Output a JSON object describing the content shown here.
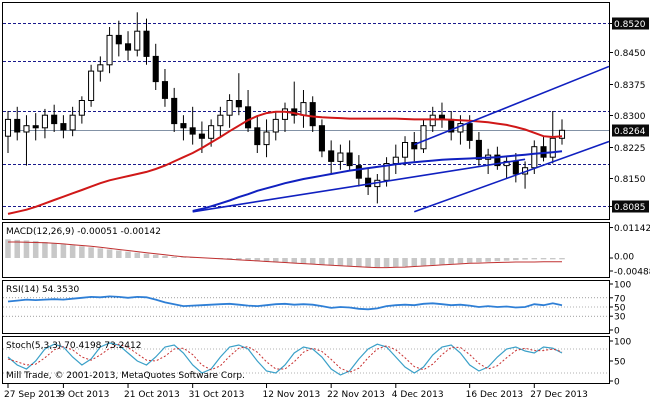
{
  "chart_data": {
    "type": "candlestick",
    "instrument": "",
    "price_panel": {
      "y_range": [
        0.806,
        0.856
      ],
      "y_ticks": [
        "0.8520",
        "0.8450",
        "0.8375",
        "0.8300",
        "0.8225",
        "0.8150",
        "0.8085"
      ],
      "highlighted_levels": [
        "0.8520",
        "0.8430",
        "0.8310",
        "0.8185",
        "0.8085"
      ],
      "current_price": "0.8264",
      "support_resistance_levels": [
        0.852,
        0.843,
        0.831,
        0.8185,
        0.8085
      ],
      "channel": {
        "upper": [
          [
            44,
            0.823
          ],
          [
            61,
            0.838
          ]
        ],
        "lower": [
          [
            44,
            0.807
          ],
          [
            61,
            0.8205
          ]
        ],
        "mid": [
          [
            20,
            0.807
          ],
          [
            56,
            0.8195
          ]
        ]
      },
      "candles": [
        {
          "o": 0.825,
          "h": 0.831,
          "l": 0.821,
          "c": 0.829
        },
        {
          "o": 0.829,
          "h": 0.832,
          "l": 0.824,
          "c": 0.826
        },
        {
          "o": 0.826,
          "h": 0.83,
          "l": 0.818,
          "c": 0.8275
        },
        {
          "o": 0.8275,
          "h": 0.8305,
          "l": 0.824,
          "c": 0.827
        },
        {
          "o": 0.827,
          "h": 0.8315,
          "l": 0.8245,
          "c": 0.83
        },
        {
          "o": 0.83,
          "h": 0.8325,
          "l": 0.826,
          "c": 0.828
        },
        {
          "o": 0.828,
          "h": 0.83,
          "l": 0.8245,
          "c": 0.8265
        },
        {
          "o": 0.8265,
          "h": 0.832,
          "l": 0.825,
          "c": 0.83
        },
        {
          "o": 0.83,
          "h": 0.8345,
          "l": 0.828,
          "c": 0.8335
        },
        {
          "o": 0.8335,
          "h": 0.842,
          "l": 0.832,
          "c": 0.8405
        },
        {
          "o": 0.8405,
          "h": 0.844,
          "l": 0.838,
          "c": 0.842
        },
        {
          "o": 0.842,
          "h": 0.851,
          "l": 0.84,
          "c": 0.849
        },
        {
          "o": 0.849,
          "h": 0.8525,
          "l": 0.844,
          "c": 0.847
        },
        {
          "o": 0.847,
          "h": 0.85,
          "l": 0.843,
          "c": 0.8455
        },
        {
          "o": 0.8455,
          "h": 0.8545,
          "l": 0.844,
          "c": 0.85
        },
        {
          "o": 0.85,
          "h": 0.853,
          "l": 0.842,
          "c": 0.844
        },
        {
          "o": 0.844,
          "h": 0.847,
          "l": 0.836,
          "c": 0.838
        },
        {
          "o": 0.838,
          "h": 0.841,
          "l": 0.832,
          "c": 0.834
        },
        {
          "o": 0.834,
          "h": 0.8365,
          "l": 0.826,
          "c": 0.828
        },
        {
          "o": 0.828,
          "h": 0.83,
          "l": 0.824,
          "c": 0.827
        },
        {
          "o": 0.827,
          "h": 0.832,
          "l": 0.823,
          "c": 0.8255
        },
        {
          "o": 0.8255,
          "h": 0.8285,
          "l": 0.821,
          "c": 0.8245
        },
        {
          "o": 0.8245,
          "h": 0.829,
          "l": 0.8225,
          "c": 0.8275
        },
        {
          "o": 0.8275,
          "h": 0.832,
          "l": 0.825,
          "c": 0.83
        },
        {
          "o": 0.83,
          "h": 0.835,
          "l": 0.827,
          "c": 0.8335
        },
        {
          "o": 0.8335,
          "h": 0.84,
          "l": 0.83,
          "c": 0.832
        },
        {
          "o": 0.832,
          "h": 0.836,
          "l": 0.826,
          "c": 0.827
        },
        {
          "o": 0.827,
          "h": 0.83,
          "l": 0.821,
          "c": 0.823
        },
        {
          "o": 0.823,
          "h": 0.829,
          "l": 0.82,
          "c": 0.826
        },
        {
          "o": 0.826,
          "h": 0.831,
          "l": 0.824,
          "c": 0.829
        },
        {
          "o": 0.829,
          "h": 0.833,
          "l": 0.826,
          "c": 0.8315
        },
        {
          "o": 0.8315,
          "h": 0.838,
          "l": 0.828,
          "c": 0.83
        },
        {
          "o": 0.83,
          "h": 0.836,
          "l": 0.827,
          "c": 0.833
        },
        {
          "o": 0.833,
          "h": 0.8345,
          "l": 0.826,
          "c": 0.8275
        },
        {
          "o": 0.8275,
          "h": 0.829,
          "l": 0.82,
          "c": 0.8215
        },
        {
          "o": 0.8215,
          "h": 0.824,
          "l": 0.816,
          "c": 0.819
        },
        {
          "o": 0.819,
          "h": 0.823,
          "l": 0.817,
          "c": 0.821
        },
        {
          "o": 0.821,
          "h": 0.824,
          "l": 0.817,
          "c": 0.818
        },
        {
          "o": 0.818,
          "h": 0.8205,
          "l": 0.813,
          "c": 0.815
        },
        {
          "o": 0.815,
          "h": 0.8175,
          "l": 0.811,
          "c": 0.813
        },
        {
          "o": 0.813,
          "h": 0.816,
          "l": 0.809,
          "c": 0.8145
        },
        {
          "o": 0.8145,
          "h": 0.82,
          "l": 0.813,
          "c": 0.8185
        },
        {
          "o": 0.8185,
          "h": 0.823,
          "l": 0.816,
          "c": 0.82
        },
        {
          "o": 0.82,
          "h": 0.825,
          "l": 0.818,
          "c": 0.8235
        },
        {
          "o": 0.8235,
          "h": 0.826,
          "l": 0.819,
          "c": 0.822
        },
        {
          "o": 0.822,
          "h": 0.829,
          "l": 0.821,
          "c": 0.8275
        },
        {
          "o": 0.8275,
          "h": 0.832,
          "l": 0.826,
          "c": 0.83
        },
        {
          "o": 0.83,
          "h": 0.833,
          "l": 0.827,
          "c": 0.829
        },
        {
          "o": 0.829,
          "h": 0.831,
          "l": 0.824,
          "c": 0.826
        },
        {
          "o": 0.826,
          "h": 0.83,
          "l": 0.823,
          "c": 0.828
        },
        {
          "o": 0.828,
          "h": 0.83,
          "l": 0.822,
          "c": 0.824
        },
        {
          "o": 0.824,
          "h": 0.826,
          "l": 0.818,
          "c": 0.8195
        },
        {
          "o": 0.8195,
          "h": 0.822,
          "l": 0.816,
          "c": 0.8205
        },
        {
          "o": 0.8205,
          "h": 0.8225,
          "l": 0.817,
          "c": 0.818
        },
        {
          "o": 0.818,
          "h": 0.82,
          "l": 0.815,
          "c": 0.819
        },
        {
          "o": 0.819,
          "h": 0.821,
          "l": 0.814,
          "c": 0.816
        },
        {
          "o": 0.816,
          "h": 0.819,
          "l": 0.8125,
          "c": 0.8175
        },
        {
          "o": 0.8175,
          "h": 0.824,
          "l": 0.816,
          "c": 0.8225
        },
        {
          "o": 0.8225,
          "h": 0.825,
          "l": 0.819,
          "c": 0.82
        },
        {
          "o": 0.82,
          "h": 0.831,
          "l": 0.8185,
          "c": 0.8245
        },
        {
          "o": 0.8245,
          "h": 0.829,
          "l": 0.823,
          "c": 0.8264
        }
      ],
      "sma_red": [
        0.8065,
        0.807,
        0.8075,
        0.8082,
        0.809,
        0.8098,
        0.8106,
        0.8114,
        0.8122,
        0.813,
        0.8138,
        0.8145,
        0.815,
        0.8155,
        0.816,
        0.8165,
        0.8172,
        0.818,
        0.819,
        0.82,
        0.821,
        0.8222,
        0.8235,
        0.8248,
        0.8262,
        0.8275,
        0.8288,
        0.8298,
        0.8305,
        0.8308,
        0.8308,
        0.8305,
        0.83,
        0.8297,
        0.8295,
        0.8294,
        0.8293,
        0.8292,
        0.8292,
        0.8292,
        0.8292,
        0.8292,
        0.8292,
        0.8291,
        0.829,
        0.829,
        0.829,
        0.829,
        0.8289,
        0.8288,
        0.8287,
        0.8285,
        0.8283,
        0.828,
        0.8277,
        0.8272,
        0.8266,
        0.8258,
        0.825,
        0.8248,
        0.825
      ],
      "sma_blue": [
        null,
        null,
        null,
        null,
        null,
        null,
        null,
        null,
        null,
        null,
        null,
        null,
        null,
        null,
        null,
        null,
        null,
        null,
        null,
        null,
        0.8072,
        0.8077,
        0.8083,
        0.809,
        0.8097,
        0.8105,
        0.8112,
        0.812,
        0.8126,
        0.8132,
        0.8138,
        0.8143,
        0.8148,
        0.8152,
        0.8156,
        0.816,
        0.8164,
        0.8168,
        0.8171,
        0.8174,
        0.8177,
        0.818,
        0.8183,
        0.8186,
        0.8188,
        0.819,
        0.8192,
        0.8194,
        0.8195,
        0.8196,
        0.8197,
        0.8198,
        0.8199,
        0.82,
        0.8202,
        0.8204,
        0.8206,
        0.8208,
        0.821,
        0.8212,
        0.8214
      ]
    },
    "macd": {
      "label": "MACD(12,26,9) -0.00051 -0.00142",
      "y_ticks": [
        "0.01142",
        "0.00",
        "-0.00488"
      ],
      "range": [
        -0.006,
        0.012
      ],
      "histogram": [
        0.007,
        0.0068,
        0.0066,
        0.0064,
        0.006,
        0.0056,
        0.0052,
        0.0048,
        0.0044,
        0.004,
        0.0036,
        0.0032,
        0.0028,
        0.0024,
        0.002,
        0.0016,
        0.0012,
        0.0008,
        0.0004,
        0.0002,
        0.0002,
        0.0,
        -0.0002,
        -0.0004,
        -0.0006,
        -0.0008,
        -0.001,
        -0.0012,
        -0.0014,
        -0.0016,
        -0.0018,
        -0.002,
        -0.0022,
        -0.0024,
        -0.0026,
        -0.0028,
        -0.003,
        -0.0032,
        -0.0034,
        -0.0036,
        -0.0035,
        -0.0034,
        -0.0033,
        -0.0032,
        -0.003,
        -0.0028,
        -0.0026,
        -0.0024,
        -0.0022,
        -0.002,
        -0.0018,
        -0.0016,
        -0.0014,
        -0.0012,
        -0.001,
        -0.0008,
        -0.0006,
        -0.0005,
        -0.0005,
        -0.0005,
        -0.0005
      ],
      "signal": [
        0.006,
        0.006,
        0.0059,
        0.0058,
        0.0057,
        0.0055,
        0.0053,
        0.005,
        0.0047,
        0.0044,
        0.004,
        0.0036,
        0.0032,
        0.0028,
        0.0024,
        0.002,
        0.0016,
        0.0012,
        0.0008,
        0.0005,
        0.0003,
        0.0001,
        -0.0001,
        -0.0003,
        -0.0005,
        -0.0007,
        -0.0009,
        -0.0011,
        -0.0013,
        -0.0015,
        -0.0017,
        -0.0019,
        -0.0021,
        -0.0023,
        -0.0025,
        -0.0027,
        -0.0029,
        -0.0031,
        -0.0033,
        -0.0035,
        -0.0036,
        -0.0036,
        -0.0035,
        -0.0034,
        -0.0032,
        -0.003,
        -0.0028,
        -0.0026,
        -0.0024,
        -0.0022,
        -0.002,
        -0.0019,
        -0.0018,
        -0.0017,
        -0.0016,
        -0.0015,
        -0.0015,
        -0.0015,
        -0.0014,
        -0.0014,
        -0.0014
      ]
    },
    "rsi": {
      "label": "RSI(14) 54.3530",
      "y_ticks": [
        "100",
        "70",
        "50",
        "30",
        "0"
      ],
      "values": [
        62,
        64,
        66,
        65,
        66,
        67,
        66,
        68,
        70,
        72,
        71,
        73,
        72,
        70,
        72,
        71,
        66,
        60,
        56,
        52,
        53,
        54,
        55,
        56,
        57,
        55,
        53,
        52,
        54,
        56,
        57,
        55,
        56,
        55,
        52,
        48,
        50,
        49,
        46,
        45,
        47,
        52,
        54,
        55,
        54,
        57,
        58,
        56,
        54,
        55,
        53,
        50,
        52,
        50,
        51,
        49,
        50,
        56,
        54,
        58,
        54
      ]
    },
    "stoch": {
      "label": "Stoch(5,3,3) 70.4198 73.2412",
      "y_ticks": [
        "100",
        "50",
        "0"
      ],
      "k": [
        60,
        40,
        30,
        50,
        80,
        92,
        85,
        60,
        40,
        55,
        85,
        95,
        90,
        70,
        50,
        40,
        60,
        85,
        90,
        70,
        40,
        20,
        30,
        60,
        85,
        90,
        80,
        50,
        25,
        20,
        40,
        70,
        85,
        80,
        60,
        30,
        15,
        25,
        55,
        80,
        92,
        85,
        60,
        35,
        20,
        35,
        65,
        85,
        90,
        70,
        40,
        25,
        35,
        60,
        80,
        85,
        75,
        70,
        85,
        82,
        70
      ],
      "d": [
        55,
        48,
        40,
        42,
        58,
        78,
        86,
        78,
        60,
        52,
        65,
        82,
        92,
        84,
        68,
        52,
        50,
        62,
        80,
        82,
        66,
        40,
        28,
        38,
        62,
        82,
        86,
        72,
        48,
        30,
        30,
        48,
        72,
        82,
        74,
        54,
        32,
        22,
        32,
        58,
        80,
        88,
        78,
        58,
        36,
        28,
        42,
        66,
        84,
        84,
        66,
        44,
        30,
        38,
        58,
        76,
        82,
        76,
        76,
        80,
        73
      ]
    },
    "x_ticks": [
      {
        "i": 0,
        "label": "27 Sep 2013"
      },
      {
        "i": 6,
        "label": "9 Oct 2013"
      },
      {
        "i": 13,
        "label": "21 Oct 2013"
      },
      {
        "i": 20,
        "label": "31 Oct 2013"
      },
      {
        "i": 28,
        "label": "12 Nov 2013"
      },
      {
        "i": 35,
        "label": "22 Nov 2013"
      },
      {
        "i": 42,
        "label": "4 Dec 2013"
      },
      {
        "i": 50,
        "label": "16 Dec 2013"
      },
      {
        "i": 57,
        "label": "27 Dec 2013"
      }
    ],
    "colors": {
      "sma_red": "#d01818",
      "sma_blue": "#1020c0",
      "rsi_line": "#2e7fd6",
      "stoch_k": "#3aa0c8",
      "stoch_d": "#c83030",
      "macd_hist": "#c8c8c8",
      "macd_signal": "#c03030",
      "candle_body": "#ffffff",
      "candle_line": "#000000"
    }
  },
  "footer": {
    "copyright": "Mill Trade, © 2001-2013, MetaQuotes Software Corp."
  }
}
